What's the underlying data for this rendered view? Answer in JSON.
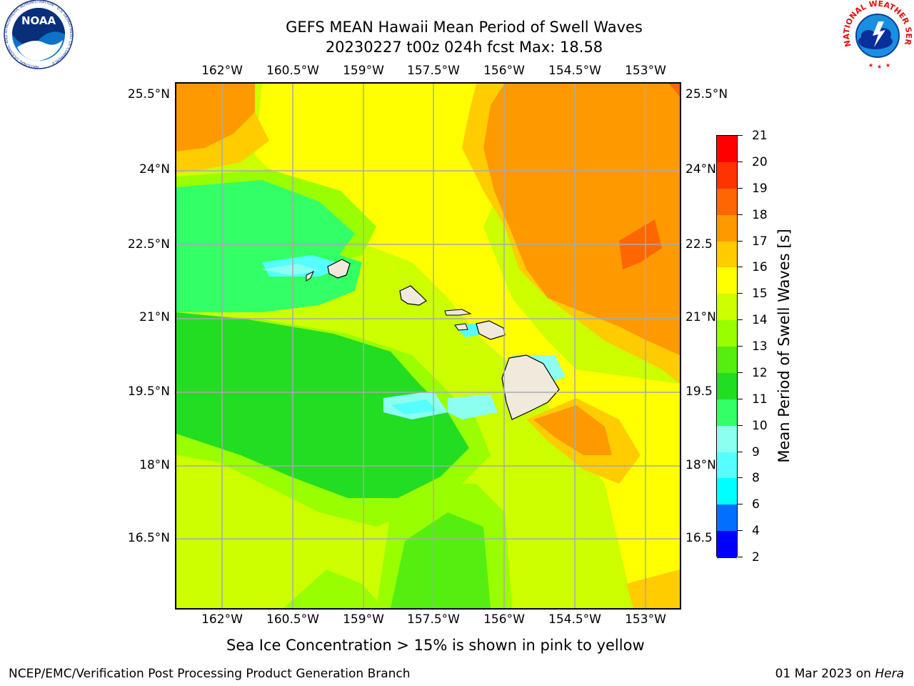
{
  "title": {
    "line1": "GEFS MEAN Hawaii Mean Period of Swell Waves",
    "line2": "20230227 t00z 024h fcst   Max: 18.58"
  },
  "longitude_labels": [
    "162°W",
    "160.5°W",
    "159°W",
    "157.5°W",
    "156°W",
    "154.5°W",
    "153°W"
  ],
  "latitude_labels": [
    "25.5°N",
    "24°N",
    "22.5°N",
    "21°N",
    "19.5°N",
    "18°N",
    "16.5°N"
  ],
  "right_latitude_labels": [
    "25.5°N",
    "24°N",
    "22.5",
    "21°N",
    "19.5",
    "18°N",
    "16.5"
  ],
  "colorbar": {
    "label": "Mean Period of Swell Waves [s]",
    "ticks": [
      "2",
      "4",
      "6",
      "8",
      "9",
      "10",
      "11",
      "12",
      "13",
      "14",
      "15",
      "16",
      "17",
      "18",
      "19",
      "20",
      "21"
    ],
    "colors": [
      "#0000ff",
      "#0070ff",
      "#00ffff",
      "#55ffff",
      "#8cfff0",
      "#33ff66",
      "#22dd22",
      "#55ee11",
      "#99ff00",
      "#ccff00",
      "#ffff00",
      "#ffcc00",
      "#ff9900",
      "#ff6600",
      "#ff3300",
      "#ff0000"
    ]
  },
  "note": "Sea Ice Concentration > 15% is shown in pink to yellow",
  "footer": {
    "left": "NCEP/EMC/Verification Post Processing Product Generation Branch",
    "right_date": "01 Mar 2023 on ",
    "right_host": "Hera"
  },
  "logos": {
    "noaa_text": "NOAA",
    "noaa_ring": "NATIONAL OCEANIC AND ATMOSPHERIC ADMINISTRATION · U.S. DEPARTMENT OF COMMERCE",
    "nws_ring": "NATIONAL WEATHER SERVICE"
  }
}
